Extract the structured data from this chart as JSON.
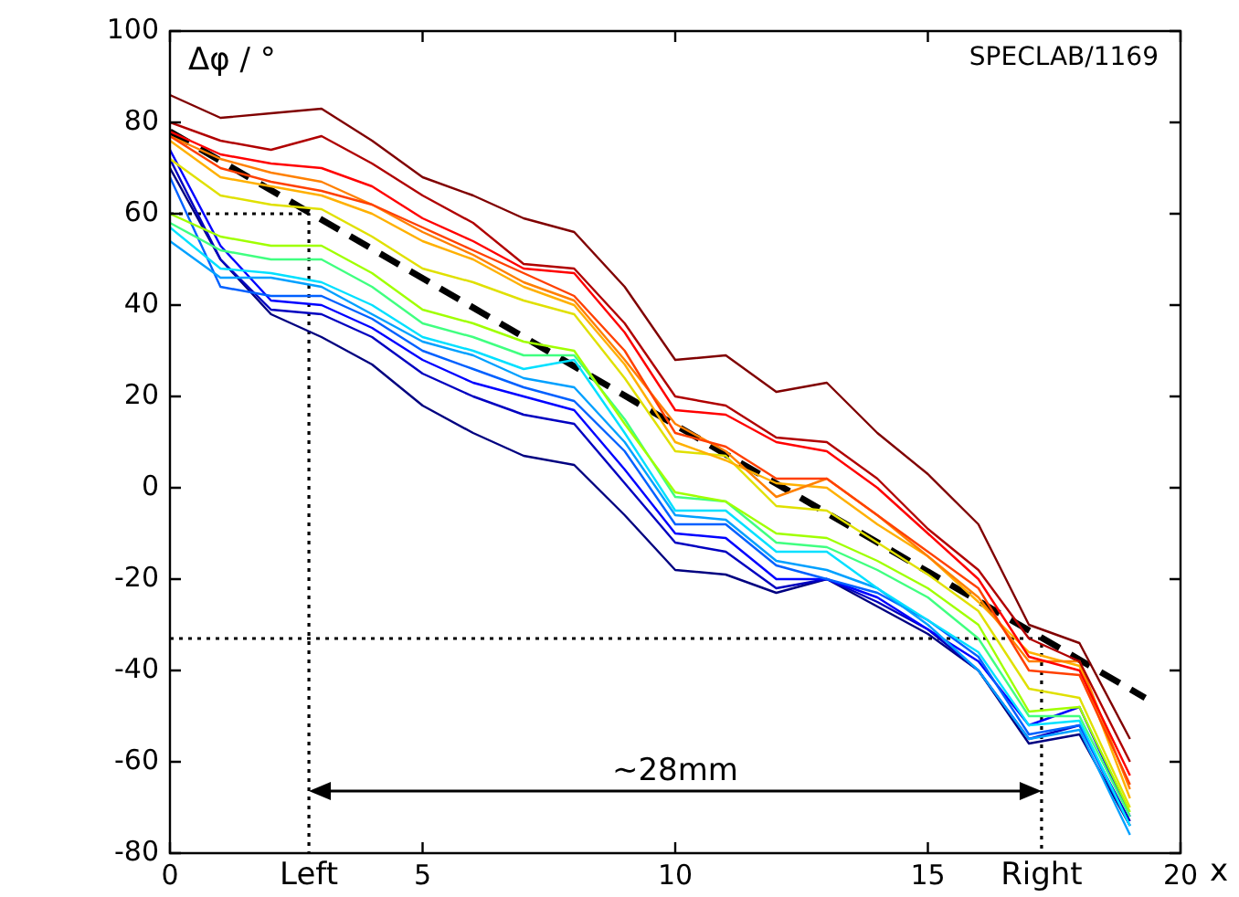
{
  "chart_data": {
    "type": "line",
    "ylabel": "Δφ / °",
    "xlabel": "x",
    "x": [
      0,
      1,
      2,
      3,
      4,
      5,
      6,
      7,
      8,
      9,
      10,
      11,
      12,
      13,
      14,
      15,
      16,
      17,
      18,
      19
    ],
    "xlim": [
      0,
      20
    ],
    "xticks": [
      0,
      5,
      10,
      15,
      20
    ],
    "ylim": [
      -80,
      100
    ],
    "yticks": [
      -80,
      -60,
      -40,
      -20,
      0,
      20,
      40,
      60,
      80,
      100
    ],
    "grid": false,
    "legend": false,
    "marker": "none",
    "series": [
      {
        "color": "#800000",
        "values": [
          86,
          81,
          82,
          83,
          76,
          68,
          64,
          59,
          56,
          44,
          28,
          29,
          21,
          23,
          12,
          3,
          -8,
          -30,
          -34,
          -55
        ]
      },
      {
        "color": "#b00000",
        "values": [
          80,
          76,
          74,
          77,
          71,
          64,
          58,
          49,
          48,
          36,
          20,
          18,
          11,
          10,
          2,
          -9,
          -18,
          -33,
          -38,
          -60
        ]
      },
      {
        "color": "#ff0000",
        "values": [
          78,
          73,
          71,
          70,
          66,
          59,
          54,
          48,
          47,
          34,
          17,
          16,
          10,
          8,
          0,
          -10,
          -20,
          -37,
          -40,
          -63
        ]
      },
      {
        "color": "#ff4000",
        "values": [
          77,
          70,
          67,
          65,
          62,
          57,
          52,
          47,
          42,
          30,
          12,
          9,
          2,
          2,
          -6,
          -14,
          -22,
          -40,
          -41,
          -65
        ]
      },
      {
        "color": "#ff8000",
        "values": [
          77,
          72,
          69,
          67,
          62,
          56,
          51,
          45,
          41,
          28,
          14,
          8,
          -2,
          2,
          -6,
          -15,
          -24,
          -38,
          -38,
          -66
        ]
      },
      {
        "color": "#ffb000",
        "values": [
          76,
          68,
          66,
          64,
          60,
          54,
          50,
          44,
          40,
          27,
          10,
          6,
          1,
          0,
          -8,
          -15,
          -25,
          -36,
          -39,
          -68
        ]
      },
      {
        "color": "#e0e000",
        "values": [
          72,
          64,
          62,
          61,
          55,
          48,
          45,
          41,
          38,
          24,
          8,
          7,
          -4,
          -5,
          -12,
          -19,
          -27,
          -44,
          -46,
          -70
        ]
      },
      {
        "color": "#a0ff00",
        "values": [
          60,
          55,
          53,
          53,
          47,
          39,
          36,
          32,
          30,
          14,
          -1,
          -3,
          -10,
          -11,
          -16,
          -22,
          -30,
          -49,
          -48,
          -71
        ]
      },
      {
        "color": "#40ff80",
        "values": [
          58,
          52,
          50,
          50,
          44,
          36,
          33,
          29,
          29,
          15,
          -2,
          -3,
          -12,
          -13,
          -18,
          -24,
          -33,
          -50,
          -50,
          -72
        ]
      },
      {
        "color": "#00e0ff",
        "values": [
          57,
          48,
          47,
          45,
          40,
          33,
          30,
          26,
          28,
          12,
          -5,
          -5,
          -14,
          -14,
          -22,
          -29,
          -36,
          -52,
          -51,
          -74
        ]
      },
      {
        "color": "#00a0ff",
        "values": [
          54,
          46,
          46,
          44,
          38,
          32,
          29,
          24,
          22,
          10,
          -6,
          -7,
          -16,
          -18,
          -22,
          -30,
          -40,
          -55,
          -53,
          -76
        ]
      },
      {
        "color": "#0060ff",
        "values": [
          68,
          44,
          42,
          42,
          37,
          30,
          26,
          22,
          19,
          8,
          -8,
          -8,
          -17,
          -20,
          -23,
          -29,
          -37,
          -54,
          -52,
          -74
        ]
      },
      {
        "color": "#0000ff",
        "values": [
          74,
          53,
          41,
          40,
          35,
          28,
          23,
          20,
          17,
          4,
          -10,
          -11,
          -20,
          -20,
          -24,
          -31,
          -38,
          -52,
          -48,
          -72
        ]
      },
      {
        "color": "#0000c0",
        "values": [
          72,
          50,
          39,
          38,
          33,
          25,
          20,
          16,
          14,
          1,
          -12,
          -14,
          -22,
          -20,
          -25,
          -31,
          -40,
          -55,
          -52,
          -73
        ]
      },
      {
        "color": "#000080",
        "values": [
          70,
          50,
          38,
          33,
          27,
          18,
          12,
          7,
          5,
          -6,
          -18,
          -19,
          -23,
          -20,
          -26,
          -32,
          -40,
          -56,
          -54,
          -74
        ]
      },
      {
        "type": "line",
        "x": [
          0,
          19.3
        ],
        "values": [
          78,
          -46
        ],
        "color": "#000000",
        "line_style": "dashed"
      },
      {
        "type": "line",
        "x": [
          0,
          2.75,
          2.75
        ],
        "values": [
          60,
          60,
          -80
        ],
        "color": "#000000",
        "line_style": "dotted"
      },
      {
        "type": "line",
        "x": [
          0,
          17.25,
          17.25
        ],
        "values": [
          -33,
          -33,
          -80
        ],
        "color": "#000000",
        "line_style": "dotted"
      }
    ],
    "annotations": [
      "SPECLAB/1169",
      "~28mm",
      {
        "text": "Left",
        "x": 2.75,
        "y": -80
      },
      {
        "text": "Right",
        "x": 17.25,
        "y": -80
      }
    ]
  }
}
